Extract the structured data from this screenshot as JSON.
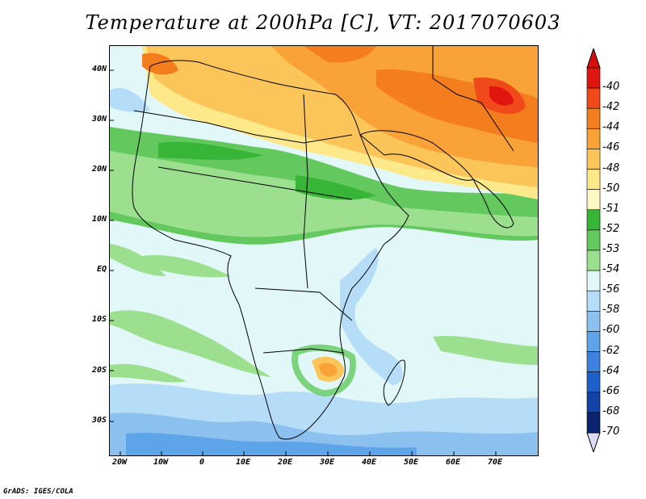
{
  "title": "Temperature at 200hPa [C], VT: 2017070603",
  "credit": "GrADS: IGES/COLA",
  "latitude_labels": [
    "40N",
    "30N",
    "20N",
    "10N",
    "EQ",
    "10S",
    "20S",
    "30S"
  ],
  "longitude_labels": [
    "20W",
    "10W",
    "0",
    "10E",
    "20E",
    "30E",
    "40E",
    "50E",
    "60E",
    "70E"
  ],
  "colorbar": {
    "levels": [
      "-40",
      "-42",
      "-44",
      "-46",
      "-48",
      "-50",
      "-51",
      "-52",
      "-53",
      "-54",
      "-56",
      "-58",
      "-60",
      "-62",
      "-64",
      "-66",
      "-68",
      "-70"
    ],
    "colors": [
      "#e0150f",
      "#f04a1a",
      "#f47d1e",
      "#f8a237",
      "#fbc559",
      "#fde98a",
      "#fff7c4",
      "#37b536",
      "#63c95e",
      "#9ce08f",
      "#e2f8f8",
      "#b5ddf7",
      "#8cc1ef",
      "#5da4e8",
      "#3c82de",
      "#1e60c9",
      "#1443a8",
      "#0b2470"
    ],
    "top_arrow_color": "#d50f0f",
    "bottom_arrow_color": "#dcdcf8"
  }
}
